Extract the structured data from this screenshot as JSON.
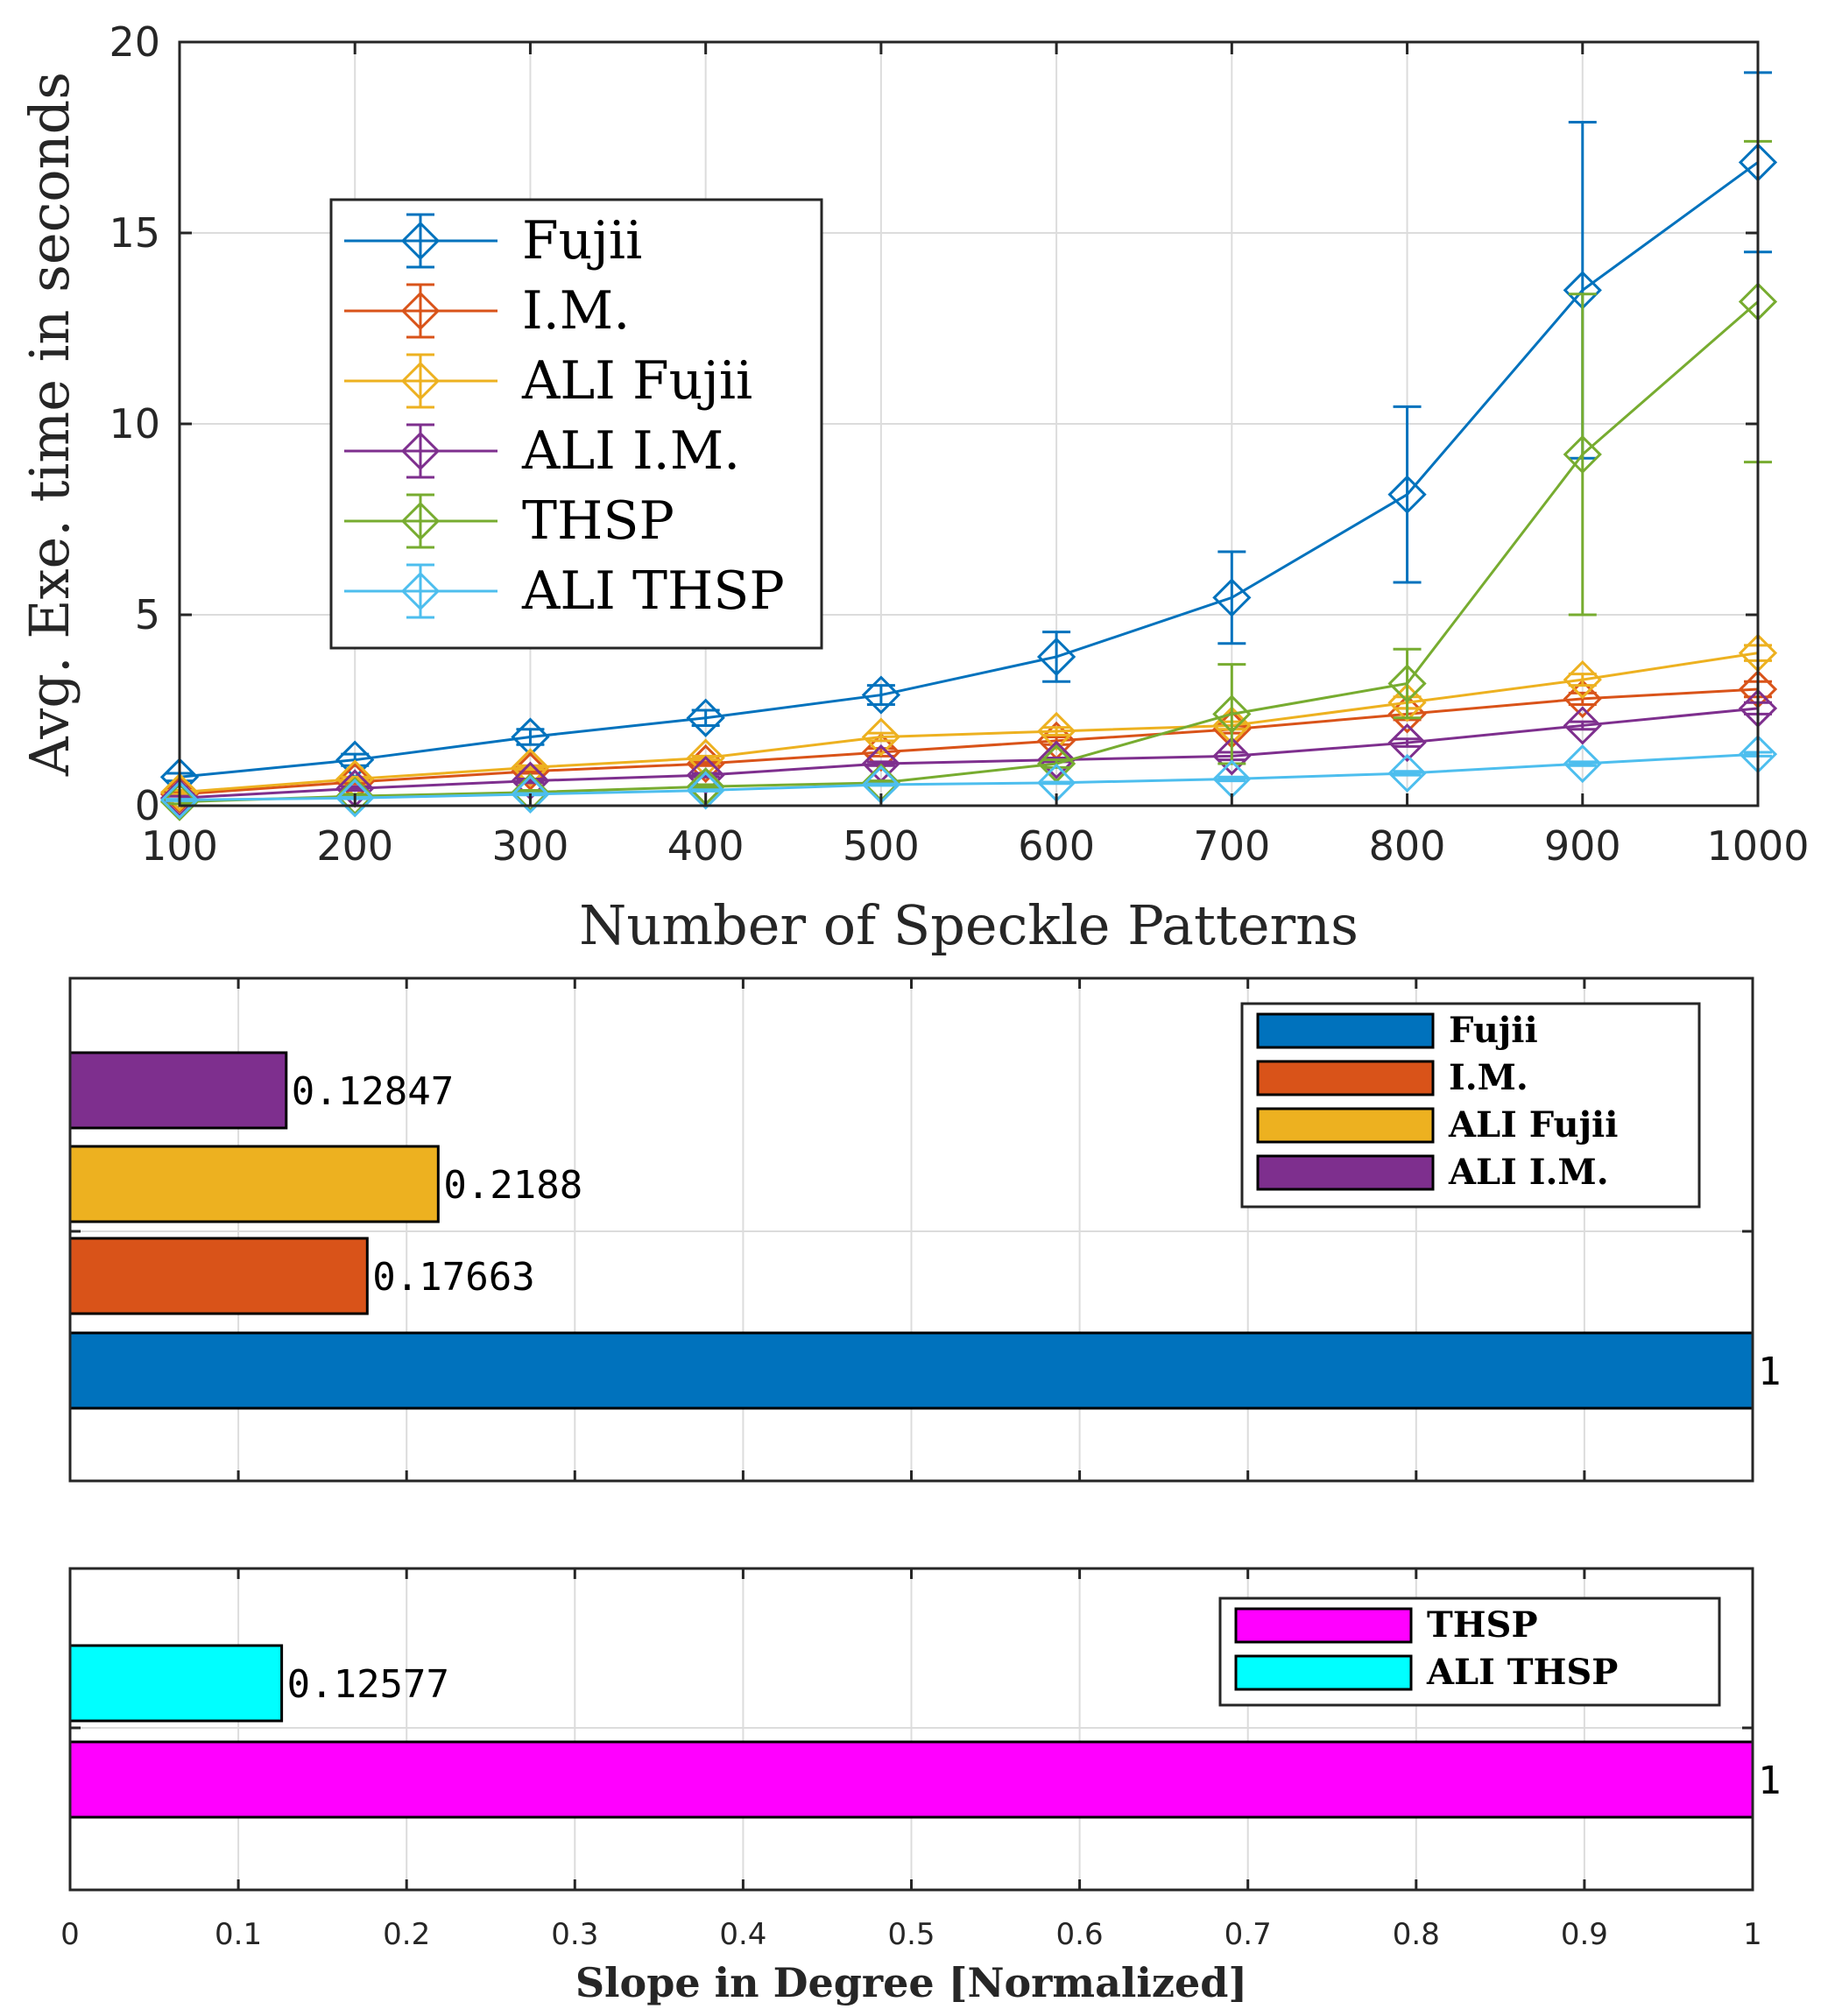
{
  "chart_data": [
    {
      "type": "line",
      "with_error_bars": true,
      "xlabel": "Number of Speckle Patterns",
      "ylabel": "Avg. Exe. time in seconds",
      "x": [
        100,
        200,
        300,
        400,
        500,
        600,
        700,
        800,
        900,
        1000
      ],
      "x_tick_labels": [
        "100",
        "200",
        "300",
        "400",
        "500",
        "600",
        "700",
        "800",
        "900",
        "1000"
      ],
      "y_tick_values": [
        0,
        5,
        10,
        15,
        20
      ],
      "y_tick_labels": [
        "0",
        "5",
        "10",
        "15",
        "20"
      ],
      "xlim": [
        100,
        1000
      ],
      "ylim": [
        0,
        20
      ],
      "grid": true,
      "legend_position": "upper-left",
      "series": [
        {
          "name": "Fujii",
          "color": "#0072BD",
          "values": [
            0.75,
            1.2,
            1.8,
            2.3,
            2.9,
            3.9,
            5.45,
            8.15,
            13.5,
            16.85
          ],
          "err": [
            0.1,
            0.15,
            0.2,
            0.2,
            0.25,
            0.65,
            1.2,
            2.3,
            4.4,
            2.35
          ]
        },
        {
          "name": "I.M.",
          "color": "#D95319",
          "values": [
            0.3,
            0.62,
            0.9,
            1.1,
            1.4,
            1.7,
            2.0,
            2.4,
            2.8,
            3.05
          ],
          "err": [
            0.05,
            0.05,
            0.05,
            0.05,
            0.1,
            0.1,
            0.1,
            0.15,
            0.15,
            0.2
          ]
        },
        {
          "name": "ALI Fujii",
          "color": "#EDB120",
          "values": [
            0.35,
            0.7,
            1.0,
            1.25,
            1.8,
            1.95,
            2.1,
            2.7,
            3.3,
            4.0
          ],
          "err": [
            0.05,
            0.05,
            0.05,
            0.05,
            0.1,
            0.1,
            0.1,
            0.15,
            0.15,
            0.2
          ]
        },
        {
          "name": "ALI I.M.",
          "color": "#7E2F8E",
          "values": [
            0.2,
            0.45,
            0.65,
            0.8,
            1.1,
            1.2,
            1.3,
            1.65,
            2.1,
            2.55
          ],
          "err": [
            0.05,
            0.05,
            0.05,
            0.05,
            0.05,
            0.05,
            0.1,
            0.1,
            0.1,
            0.15
          ]
        },
        {
          "name": "THSP",
          "color": "#77AC30",
          "values": [
            0.1,
            0.25,
            0.35,
            0.5,
            0.6,
            1.1,
            2.4,
            3.2,
            9.2,
            13.2
          ],
          "err": [
            0.05,
            0.05,
            0.05,
            0.05,
            0.05,
            0.1,
            1.3,
            0.9,
            4.2,
            4.2
          ]
        },
        {
          "name": "ALI THSP",
          "color": "#4DBEEE",
          "values": [
            0.15,
            0.2,
            0.3,
            0.4,
            0.55,
            0.6,
            0.7,
            0.85,
            1.1,
            1.35
          ],
          "err": [
            0.02,
            0.02,
            0.02,
            0.02,
            0.02,
            0.02,
            0.05,
            0.05,
            0.05,
            0.05
          ]
        }
      ]
    },
    {
      "type": "bar",
      "orientation": "horizontal",
      "xlim": [
        0,
        1
      ],
      "categories": [
        "Fujii",
        "I.M.",
        "ALI Fujii",
        "ALI I.M."
      ],
      "values": [
        1,
        0.17663,
        0.2188,
        0.12847
      ],
      "value_labels": [
        "1",
        "0.17663",
        "0.2188",
        "0.12847"
      ],
      "colors": [
        "#0072BD",
        "#D95319",
        "#EDB120",
        "#7E2F8E"
      ],
      "legend_position": "top-right",
      "grid": true
    },
    {
      "type": "bar",
      "orientation": "horizontal",
      "xlim": [
        0,
        1
      ],
      "categories": [
        "THSP",
        "ALI THSP"
      ],
      "values": [
        1,
        0.12577
      ],
      "value_labels": [
        "1",
        "0.12577"
      ],
      "colors": [
        "#FF00FF",
        "#00FFFF"
      ],
      "x_tick_values": [
        0,
        0.1,
        0.2,
        0.3,
        0.4,
        0.5,
        0.6,
        0.7,
        0.8,
        0.9,
        1
      ],
      "x_tick_labels": [
        "0",
        "0.1",
        "0.2",
        "0.3",
        "0.4",
        "0.5",
        "0.6",
        "0.7",
        "0.8",
        "0.9",
        "1"
      ],
      "xlabel": "Slope in Degree [Normalized]",
      "legend_position": "top-right",
      "grid": true
    }
  ]
}
